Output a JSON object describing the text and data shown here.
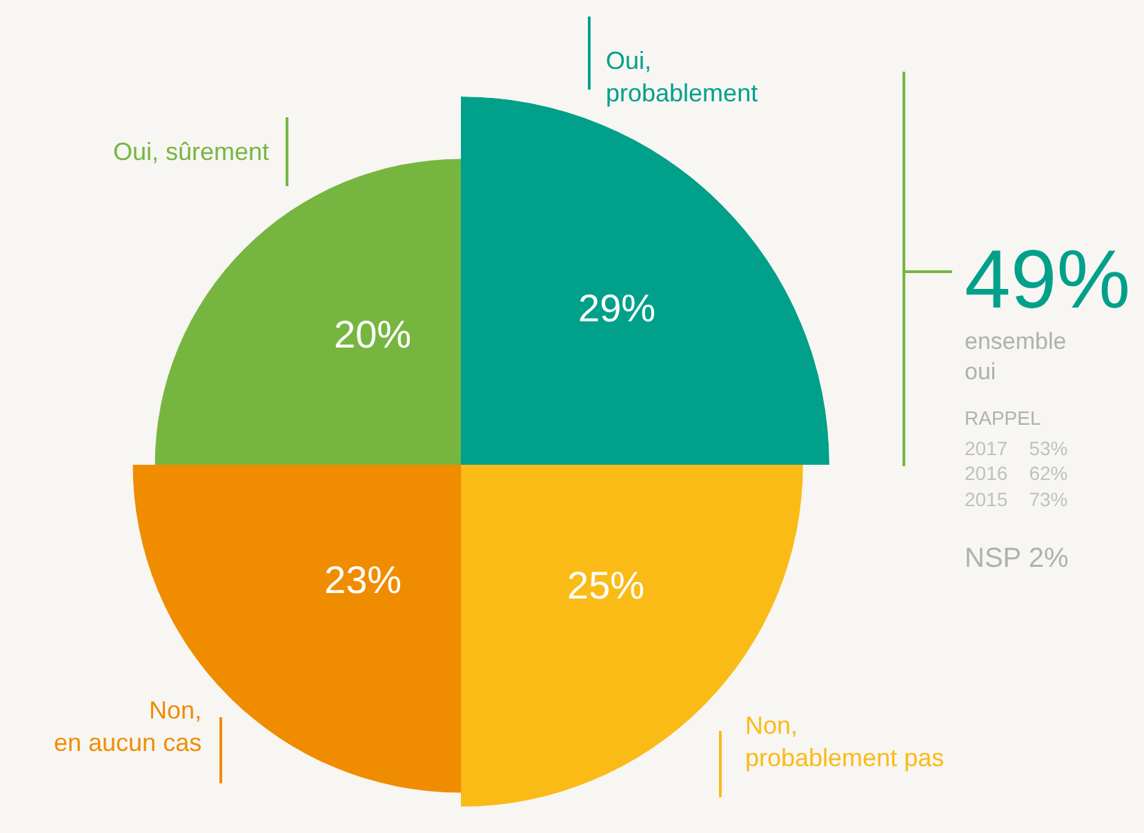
{
  "chart_data": {
    "type": "other",
    "categories": [
      "Oui,\nprobablement",
      "Non,\nprobablement pas",
      "Non,\nen aucun cas",
      "Oui, sûrement"
    ],
    "values": [
      29,
      25,
      23,
      20
    ],
    "value_labels": [
      "29%",
      "25%",
      "23%",
      "20%"
    ],
    "colors": [
      "#00a08a",
      "#fbbb16",
      "#f08c00",
      "#76b640"
    ],
    "annotations": [
      "49%",
      "ensemble\noui",
      "RAPPEL",
      "2017    53%",
      "2016    62%",
      "2015    73%",
      "NSP 2%"
    ]
  }
}
